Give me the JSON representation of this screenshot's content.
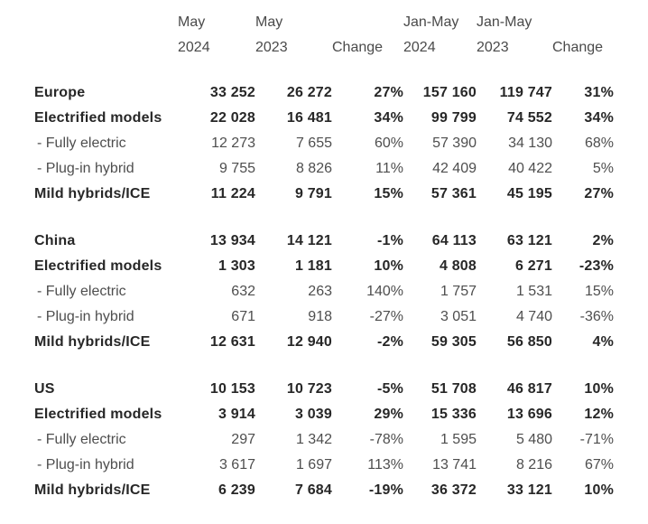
{
  "chart_data": {
    "type": "table",
    "title": "",
    "columns": [
      {
        "id": "may-2024",
        "line1": "May",
        "line2": "2024"
      },
      {
        "id": "may-2023",
        "line1": "May",
        "line2": "2023"
      },
      {
        "id": "change-may",
        "line1": "",
        "line2": "Change"
      },
      {
        "id": "jan-may-2024",
        "line1": "Jan-May",
        "line2": "2024"
      },
      {
        "id": "jan-may-2023",
        "line1": "Jan-May",
        "line2": "2023"
      },
      {
        "id": "change-jan-may",
        "line1": "",
        "line2": "Change"
      }
    ],
    "sections": [
      {
        "id": "europe",
        "rows": [
          {
            "id": "total",
            "label": "Europe",
            "bold": true,
            "values": [
              "33 252",
              "26 272",
              "27%",
              "157 160",
              "119 747",
              "31%"
            ]
          },
          {
            "id": "electrified",
            "label": "Electrified models",
            "bold": true,
            "values": [
              "22 028",
              "16 481",
              "34%",
              "99 799",
              "74 552",
              "34%"
            ]
          },
          {
            "id": "fully-electric",
            "label": "- Fully electric",
            "bold": false,
            "values": [
              "12 273",
              "7 655",
              "60%",
              "57 390",
              "34 130",
              "68%"
            ]
          },
          {
            "id": "plug-in-hybrid",
            "label": "- Plug-in hybrid",
            "bold": false,
            "values": [
              "9 755",
              "8 826",
              "11%",
              "42 409",
              "40 422",
              "5%"
            ]
          },
          {
            "id": "mild-hybrids-ice",
            "label": "Mild hybrids/ICE",
            "bold": true,
            "values": [
              "11 224",
              "9 791",
              "15%",
              "57 361",
              "45 195",
              "27%"
            ]
          }
        ]
      },
      {
        "id": "china",
        "rows": [
          {
            "id": "total",
            "label": "China",
            "bold": true,
            "values": [
              "13 934",
              "14 121",
              "-1%",
              "64 113",
              "63 121",
              "2%"
            ]
          },
          {
            "id": "electrified",
            "label": "Electrified models",
            "bold": true,
            "values": [
              "1 303",
              "1 181",
              "10%",
              "4 808",
              "6 271",
              "-23%"
            ]
          },
          {
            "id": "fully-electric",
            "label": "- Fully electric",
            "bold": false,
            "values": [
              "632",
              "263",
              "140%",
              "1 757",
              "1 531",
              "15%"
            ]
          },
          {
            "id": "plug-in-hybrid",
            "label": "- Plug-in hybrid",
            "bold": false,
            "values": [
              "671",
              "918",
              "-27%",
              "3 051",
              "4 740",
              "-36%"
            ]
          },
          {
            "id": "mild-hybrids-ice",
            "label": "Mild hybrids/ICE",
            "bold": true,
            "values": [
              "12 631",
              "12 940",
              "-2%",
              "59 305",
              "56 850",
              "4%"
            ]
          }
        ]
      },
      {
        "id": "us",
        "rows": [
          {
            "id": "total",
            "label": "US",
            "bold": true,
            "values": [
              "10 153",
              "10 723",
              "-5%",
              "51 708",
              "46 817",
              "10%"
            ]
          },
          {
            "id": "electrified",
            "label": "Electrified models",
            "bold": true,
            "values": [
              "3 914",
              "3 039",
              "29%",
              "15 336",
              "13 696",
              "12%"
            ]
          },
          {
            "id": "fully-electric",
            "label": "- Fully electric",
            "bold": false,
            "values": [
              "297",
              "1 342",
              "-78%",
              "1 595",
              "5 480",
              "-71%"
            ]
          },
          {
            "id": "plug-in-hybrid",
            "label": "- Plug-in hybrid",
            "bold": false,
            "values": [
              "3 617",
              "1 697",
              "113%",
              "13 741",
              "8 216",
              "67%"
            ]
          },
          {
            "id": "mild-hybrids-ice",
            "label": "Mild hybrids/ICE",
            "bold": true,
            "values": [
              "6 239",
              "7 684",
              "-19%",
              "36 372",
              "33 121",
              "10%"
            ]
          }
        ]
      }
    ],
    "colors": {
      "background": "#ffffff",
      "text_bold": "#272727",
      "text_regular": "#4e4e4e",
      "text_header": "#4a4a4a"
    }
  }
}
